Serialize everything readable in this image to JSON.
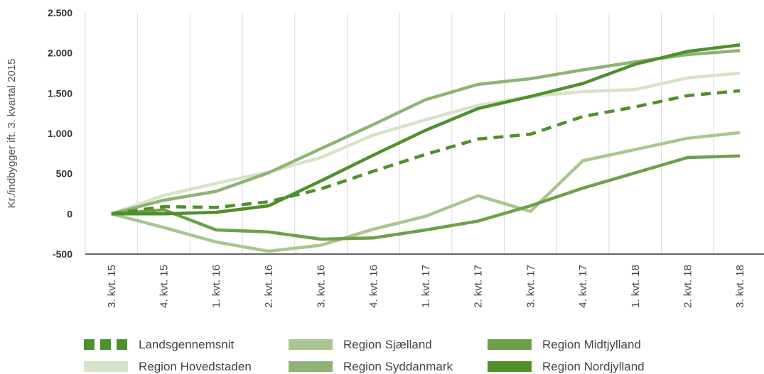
{
  "chart_data": {
    "type": "line",
    "title": "",
    "xlabel": "",
    "ylabel": "Kr./indbygger ift. 3. kvartal 2015",
    "ylim": [
      -500,
      2500
    ],
    "yticks": [
      -500,
      0,
      500,
      1000,
      1500,
      2000,
      2500
    ],
    "ytick_labels": [
      "-500",
      "0",
      "500",
      "1.000",
      "1.500",
      "2.000",
      "2.500"
    ],
    "categories": [
      "3. kvt. 15",
      "4. kvt. 15",
      "1. kvt. 16",
      "2. kvt. 16",
      "3. kvt. 16",
      "4. kvt. 16",
      "1. kvt. 17",
      "2. kvt. 17",
      "3. kvt. 17",
      "4. kvt. 17",
      "1. kvt. 18",
      "2. kvt. 18",
      "3. kvt. 18"
    ],
    "grid": "vertical",
    "legend_position": "bottom",
    "series": [
      {
        "name": "Landsgennemsnit",
        "color": "#4f8f2c",
        "dashed": true,
        "values": [
          0,
          90,
          80,
          150,
          310,
          530,
          740,
          930,
          990,
          1210,
          1330,
          1470,
          1530
        ]
      },
      {
        "name": "Region Sjælland",
        "color": "#a9c690",
        "dashed": false,
        "values": [
          0,
          -170,
          -350,
          -465,
          -390,
          -190,
          -30,
          225,
          30,
          660,
          800,
          940,
          1010
        ]
      },
      {
        "name": "Region Midtjylland",
        "color": "#6ea04b",
        "dashed": false,
        "values": [
          0,
          50,
          -200,
          -225,
          -315,
          -300,
          -200,
          -90,
          100,
          320,
          510,
          700,
          720
        ]
      },
      {
        "name": "Region Hovedstaden",
        "color": "#d5e3c8",
        "dashed": false,
        "values": [
          0,
          230,
          380,
          520,
          700,
          980,
          1170,
          1350,
          1460,
          1520,
          1545,
          1690,
          1750
        ]
      },
      {
        "name": "Region Syddanmark",
        "color": "#8db474",
        "dashed": false,
        "values": [
          0,
          170,
          280,
          510,
          810,
          1110,
          1420,
          1610,
          1680,
          1790,
          1890,
          1980,
          2030
        ]
      },
      {
        "name": "Region Nordjylland",
        "color": "#4f8f2c",
        "dashed": false,
        "values": [
          0,
          0,
          20,
          100,
          410,
          730,
          1040,
          1310,
          1460,
          1620,
          1860,
          2020,
          2100
        ]
      }
    ]
  }
}
